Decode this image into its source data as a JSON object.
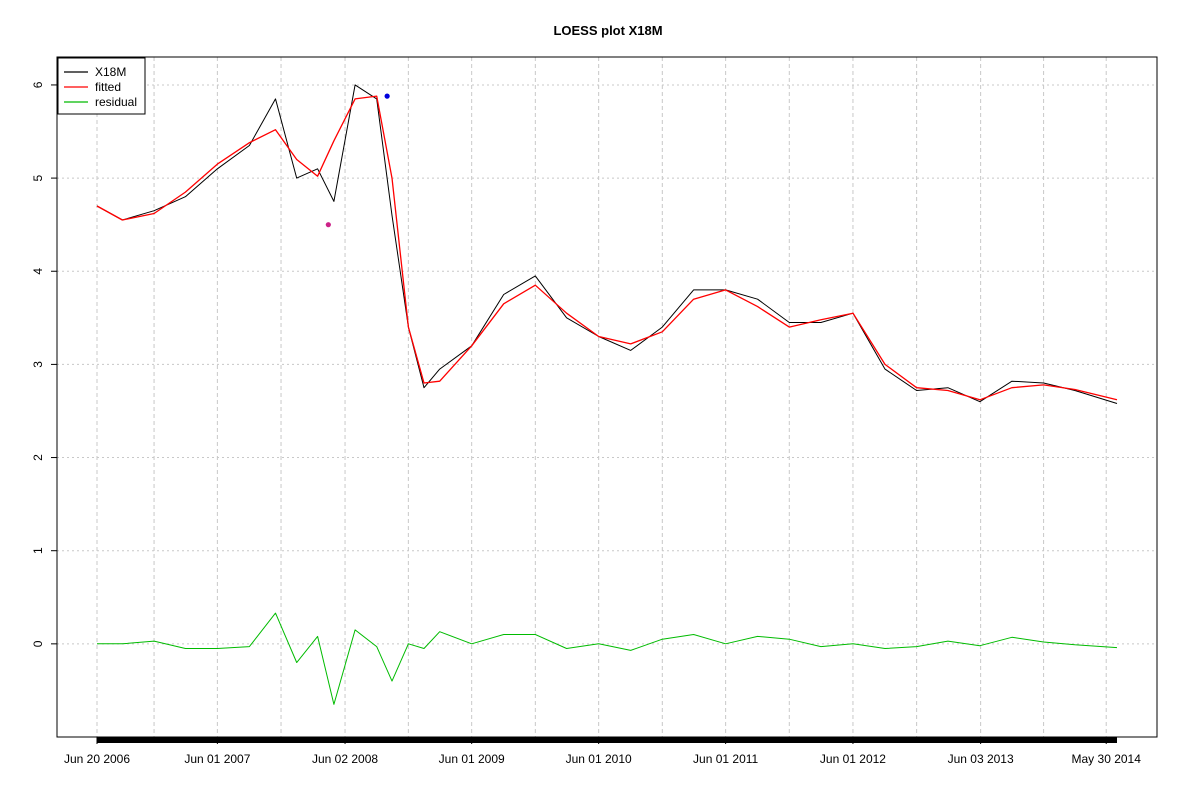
{
  "chart_data": {
    "type": "line",
    "title": "LOESS plot X18M",
    "xlabel": "",
    "ylabel": "",
    "x_ticks": [
      "Jun 20 2006",
      "Jun 01 2007",
      "Jun 02 2008",
      "Jun 01 2009",
      "Jun 01 2010",
      "Jun 01 2011",
      "Jun 01 2012",
      "Jun 03 2013",
      "May 30 2014"
    ],
    "x_range": [
      "2006-06-20",
      "2014-06-30"
    ],
    "y_ticks": [
      0,
      1,
      2,
      3,
      4,
      5,
      6
    ],
    "ylim": [
      -1.0,
      6.3
    ],
    "grid": true,
    "legend_position": "top-left",
    "colors": {
      "X18M": "#000000",
      "fitted": "#ff0000",
      "residual": "#00bb00",
      "min_marker": "#cc2288",
      "max_marker": "#0000dd"
    },
    "legend": [
      "X18M",
      "fitted",
      "residual"
    ],
    "series": [
      {
        "name": "fitted",
        "x": [
          "2006-06-20",
          "2006-09-01",
          "2006-12-01",
          "2007-03-01",
          "2007-06-01",
          "2007-09-01",
          "2007-11-15",
          "2008-01-15",
          "2008-03-15",
          "2008-05-01",
          "2008-07-01",
          "2008-09-01",
          "2008-10-15",
          "2008-12-01",
          "2009-01-15",
          "2009-03-01",
          "2009-06-01",
          "2009-09-01",
          "2009-12-01",
          "2010-03-01",
          "2010-06-01",
          "2010-09-01",
          "2010-12-01",
          "2011-03-01",
          "2011-06-01",
          "2011-09-01",
          "2011-12-01",
          "2012-03-01",
          "2012-06-01",
          "2012-09-01",
          "2012-12-01",
          "2013-03-01",
          "2013-06-01",
          "2013-09-01",
          "2013-12-01",
          "2014-03-01",
          "2014-06-30"
        ],
        "y": [
          4.7,
          4.55,
          4.62,
          4.85,
          5.15,
          5.38,
          5.52,
          5.2,
          5.02,
          5.4,
          5.85,
          5.88,
          5.0,
          3.4,
          2.8,
          2.82,
          3.2,
          3.65,
          3.85,
          3.55,
          3.3,
          3.22,
          3.35,
          3.7,
          3.8,
          3.62,
          3.4,
          3.48,
          3.55,
          3.0,
          2.75,
          2.72,
          2.62,
          2.75,
          2.78,
          2.73,
          2.62
        ]
      },
      {
        "name": "X18M",
        "x": [
          "2006-06-20",
          "2006-09-01",
          "2006-12-01",
          "2007-03-01",
          "2007-06-01",
          "2007-09-01",
          "2007-11-15",
          "2008-01-15",
          "2008-03-15",
          "2008-05-01",
          "2008-07-01",
          "2008-09-01",
          "2008-10-15",
          "2008-12-01",
          "2009-01-15",
          "2009-03-01",
          "2009-06-01",
          "2009-09-01",
          "2009-12-01",
          "2010-03-01",
          "2010-06-01",
          "2010-09-01",
          "2010-12-01",
          "2011-03-01",
          "2011-06-01",
          "2011-09-01",
          "2011-12-01",
          "2012-03-01",
          "2012-06-01",
          "2012-09-01",
          "2012-12-01",
          "2013-03-01",
          "2013-06-01",
          "2013-09-01",
          "2013-12-01",
          "2014-03-01",
          "2014-06-30"
        ],
        "y": [
          4.7,
          4.55,
          4.65,
          4.8,
          5.1,
          5.35,
          5.85,
          5.0,
          5.1,
          4.75,
          6.0,
          5.85,
          4.6,
          3.4,
          2.75,
          2.95,
          3.2,
          3.75,
          3.95,
          3.5,
          3.3,
          3.15,
          3.4,
          3.8,
          3.8,
          3.7,
          3.45,
          3.45,
          3.55,
          2.95,
          2.72,
          2.75,
          2.6,
          2.82,
          2.8,
          2.72,
          2.58
        ]
      },
      {
        "name": "residual",
        "x": [
          "2006-06-20",
          "2006-09-01",
          "2006-12-01",
          "2007-03-01",
          "2007-06-01",
          "2007-09-01",
          "2007-11-15",
          "2008-01-15",
          "2008-03-15",
          "2008-05-01",
          "2008-07-01",
          "2008-09-01",
          "2008-10-15",
          "2008-12-01",
          "2009-01-15",
          "2009-03-01",
          "2009-06-01",
          "2009-09-01",
          "2009-12-01",
          "2010-03-01",
          "2010-06-01",
          "2010-09-01",
          "2010-12-01",
          "2011-03-01",
          "2011-06-01",
          "2011-09-01",
          "2011-12-01",
          "2012-03-01",
          "2012-06-01",
          "2012-09-01",
          "2012-12-01",
          "2013-03-01",
          "2013-06-01",
          "2013-09-01",
          "2013-12-01",
          "2014-03-01",
          "2014-06-30"
        ],
        "y": [
          0.0,
          0.0,
          0.03,
          -0.05,
          -0.05,
          -0.03,
          0.33,
          -0.2,
          0.08,
          -0.65,
          0.15,
          -0.03,
          -0.4,
          0.0,
          -0.05,
          0.13,
          0.0,
          0.1,
          0.1,
          -0.05,
          0.0,
          -0.07,
          0.05,
          0.1,
          0.0,
          0.08,
          0.05,
          -0.03,
          0.0,
          -0.05,
          -0.03,
          0.03,
          -0.02,
          0.07,
          0.02,
          -0.01,
          -0.04
        ]
      }
    ],
    "markers": [
      {
        "x": "2008-04-15",
        "y": 4.5
      },
      {
        "x": "2008-10-01",
        "y": 5.88
      }
    ]
  }
}
